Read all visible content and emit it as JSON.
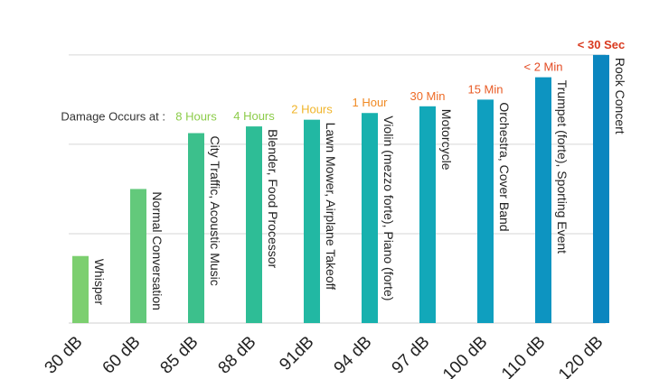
{
  "chart_data": {
    "type": "bar",
    "categories": [
      "30 dB",
      "60 dB",
      "85 dB",
      "88 dB",
      "91dB",
      "94 dB",
      "97 dB",
      "100 dB",
      "110 dB",
      "120 dB"
    ],
    "values": [
      30,
      60,
      85,
      88,
      91,
      94,
      97,
      100,
      110,
      120
    ],
    "sounds": [
      "Whisper",
      "Normal Conversation",
      "City Traffic, Acoustic Music",
      "Blender, Food Processor",
      "Lawn Mower, Airplane Takeoff",
      "Violin (mezzo forte), Piano (forte)",
      "Motorcycle",
      "Orchestra, Cover Band",
      "Trumpet (forte), Sporting Event",
      "Rock Concert"
    ],
    "damage_prefix": "Damage Occurs at :",
    "damage_times": [
      "",
      "",
      "8 Hours",
      "4 Hours",
      "2 Hours",
      "1 Hour",
      "30 Min",
      "15 Min",
      "< 2 Min",
      "< 30 Sec"
    ],
    "colors": [
      "#7ccf6f",
      "#63c97b",
      "#3cc08c",
      "#2ebd96",
      "#22b8a3",
      "#17b1ae",
      "#12a8b9",
      "#0f9fbf",
      "#0d94c1",
      "#0b86bf"
    ],
    "damage_colors": [
      "",
      "",
      "#8ccc4a",
      "#8ccc4a",
      "#f0b429",
      "#f08a24",
      "#ee6b26",
      "#e85a24",
      "#e34a22",
      "#d93a1f"
    ],
    "ylim": [
      0,
      126
    ],
    "grid": true,
    "xlabel": "",
    "ylabel": "",
    "title": ""
  }
}
